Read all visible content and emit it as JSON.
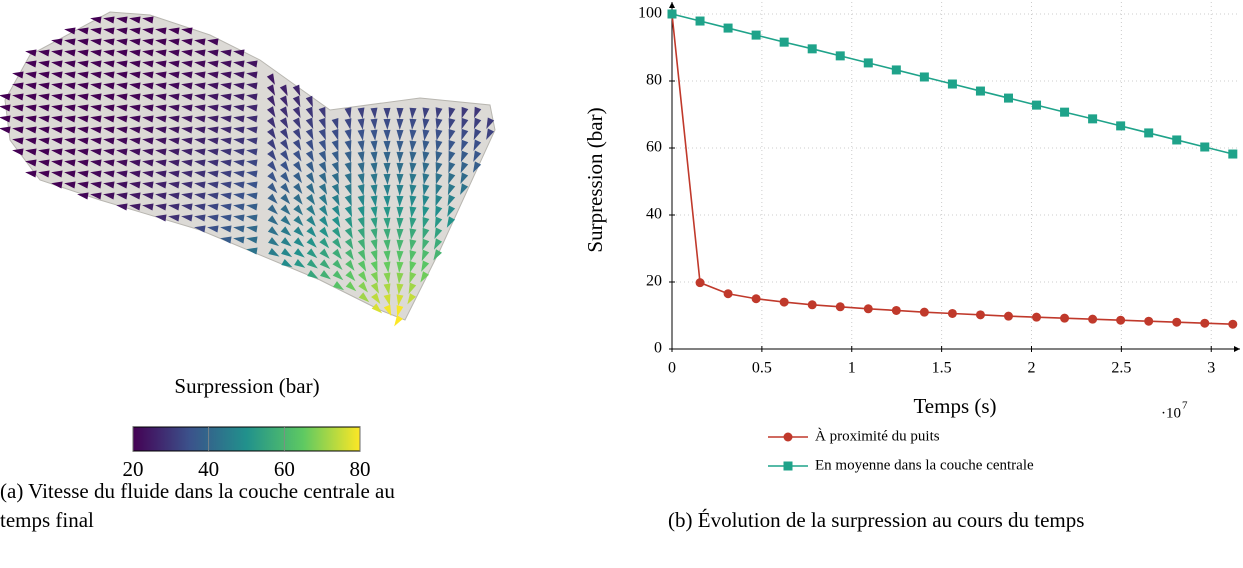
{
  "colorbar": {
    "label": "Surpression (bar)",
    "lim": [
      20,
      80
    ],
    "ticks": [
      20,
      40,
      60,
      80
    ]
  },
  "caption_a": "(a) Vitesse du fluide dans la couche centrale au temps final",
  "caption_b": "(b) Évolution de la surpression au cours du temps",
  "chart_data": {
    "type": "line",
    "xlabel": "Temps (s)",
    "ylabel": "Surpression (bar)",
    "x_scale_base": "·10",
    "x_scale_exponent": "7",
    "x": [
      0,
      0.156,
      0.312,
      0.468,
      0.624,
      0.78,
      0.936,
      1.092,
      1.248,
      1.404,
      1.56,
      1.716,
      1.872,
      2.028,
      2.184,
      2.34,
      2.496,
      2.652,
      2.808,
      2.964,
      3.12
    ],
    "xlim": [
      0,
      3.16
    ],
    "xticks": [
      0,
      0.5,
      1,
      1.5,
      2,
      2.5,
      3
    ],
    "ylim": [
      0,
      100
    ],
    "yticks": [
      0,
      20,
      40,
      60,
      80,
      100
    ],
    "grid": true,
    "legend": "below",
    "series": [
      {
        "name": "À proximité du puits",
        "color": "#c0392b",
        "marker": "circle",
        "values": [
          100,
          19.8,
          16.5,
          15,
          14,
          13.2,
          12.6,
          12,
          11.5,
          11,
          10.6,
          10.2,
          9.8,
          9.5,
          9.2,
          8.9,
          8.6,
          8.3,
          8.0,
          7.7,
          7.4
        ]
      },
      {
        "name": "En moyenne dans la couche centrale",
        "color": "#1fa38a",
        "marker": "square",
        "values": [
          100,
          97.9,
          95.8,
          93.7,
          91.6,
          89.6,
          87.5,
          85.4,
          83.3,
          81.2,
          79.1,
          77.0,
          74.9,
          72.8,
          70.7,
          68.7,
          66.6,
          64.5,
          62.4,
          60.3,
          58.2
        ]
      }
    ]
  }
}
